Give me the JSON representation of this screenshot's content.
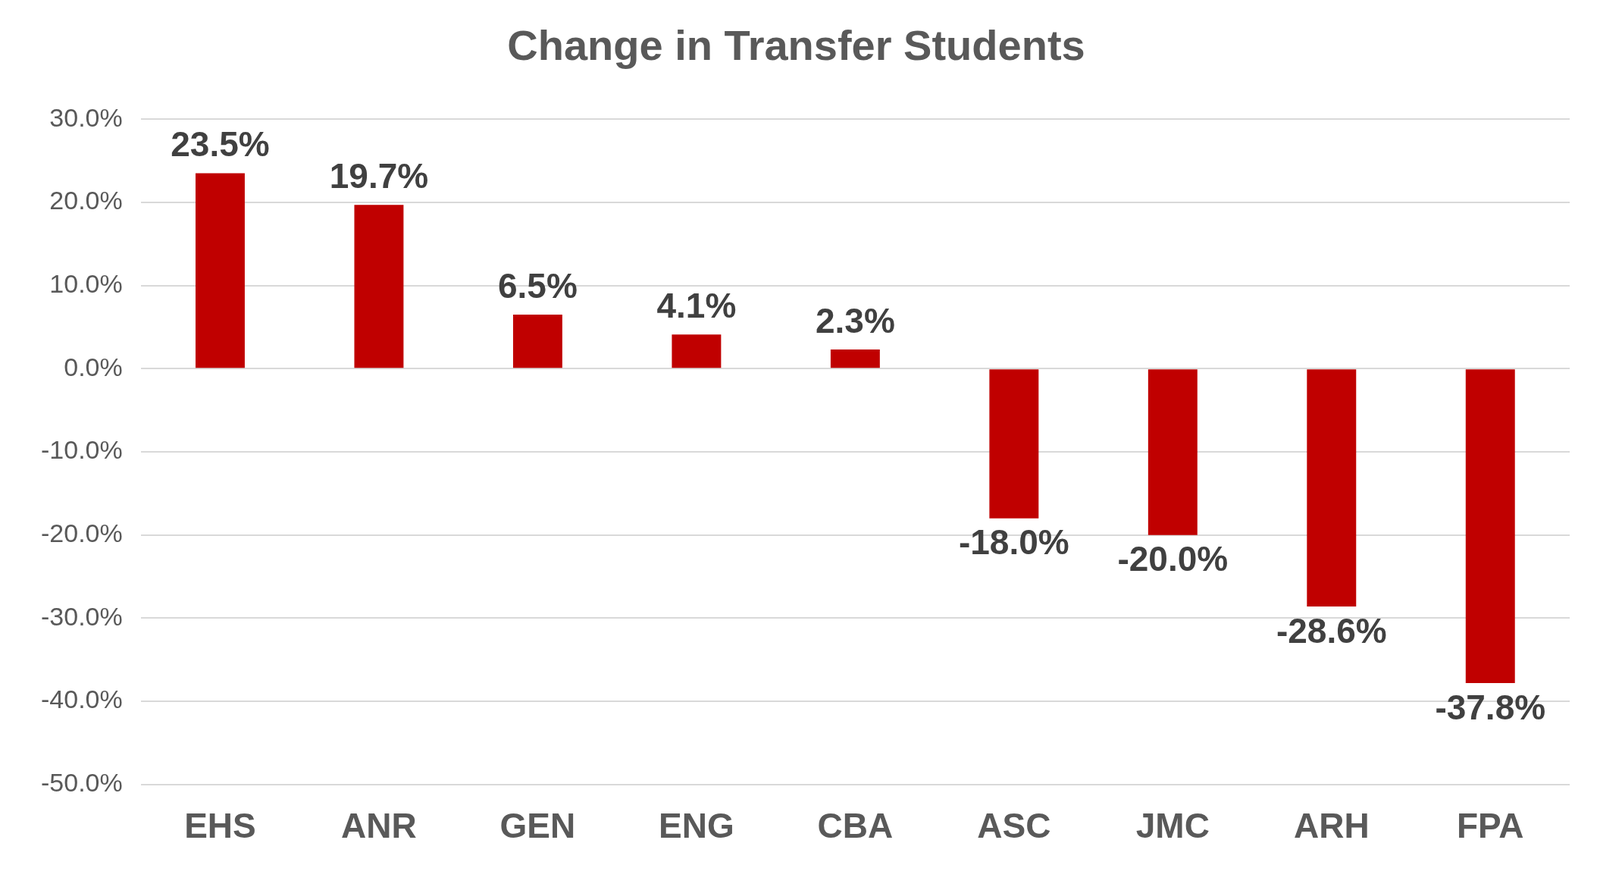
{
  "chart_data": {
    "type": "bar",
    "title": "Change in Transfer Students",
    "categories": [
      "EHS",
      "ANR",
      "GEN",
      "ENG",
      "CBA",
      "ASC",
      "JMC",
      "ARH",
      "FPA"
    ],
    "values": [
      23.5,
      19.7,
      6.5,
      4.1,
      2.3,
      -18.0,
      -20.0,
      -28.6,
      -37.8
    ],
    "value_labels": [
      "23.5%",
      "19.7%",
      "6.5%",
      "4.1%",
      "2.3%",
      "-18.0%",
      "-20.0%",
      "-28.6%",
      "-37.8%"
    ],
    "color": "#c00000",
    "ylim": [
      -50,
      30
    ],
    "yticks": [
      {
        "value": -50,
        "label": "-50.0%"
      },
      {
        "value": -40,
        "label": "-40.0%"
      },
      {
        "value": -30,
        "label": "-30.0%"
      },
      {
        "value": -20,
        "label": "-20.0%"
      },
      {
        "value": -10,
        "label": "-10.0%"
      },
      {
        "value": 0,
        "label": "0.0%"
      },
      {
        "value": 10,
        "label": "10.0%"
      },
      {
        "value": 20,
        "label": "20.0%"
      },
      {
        "value": 30,
        "label": "30.0%"
      }
    ],
    "grid": true,
    "data_labels": true
  }
}
